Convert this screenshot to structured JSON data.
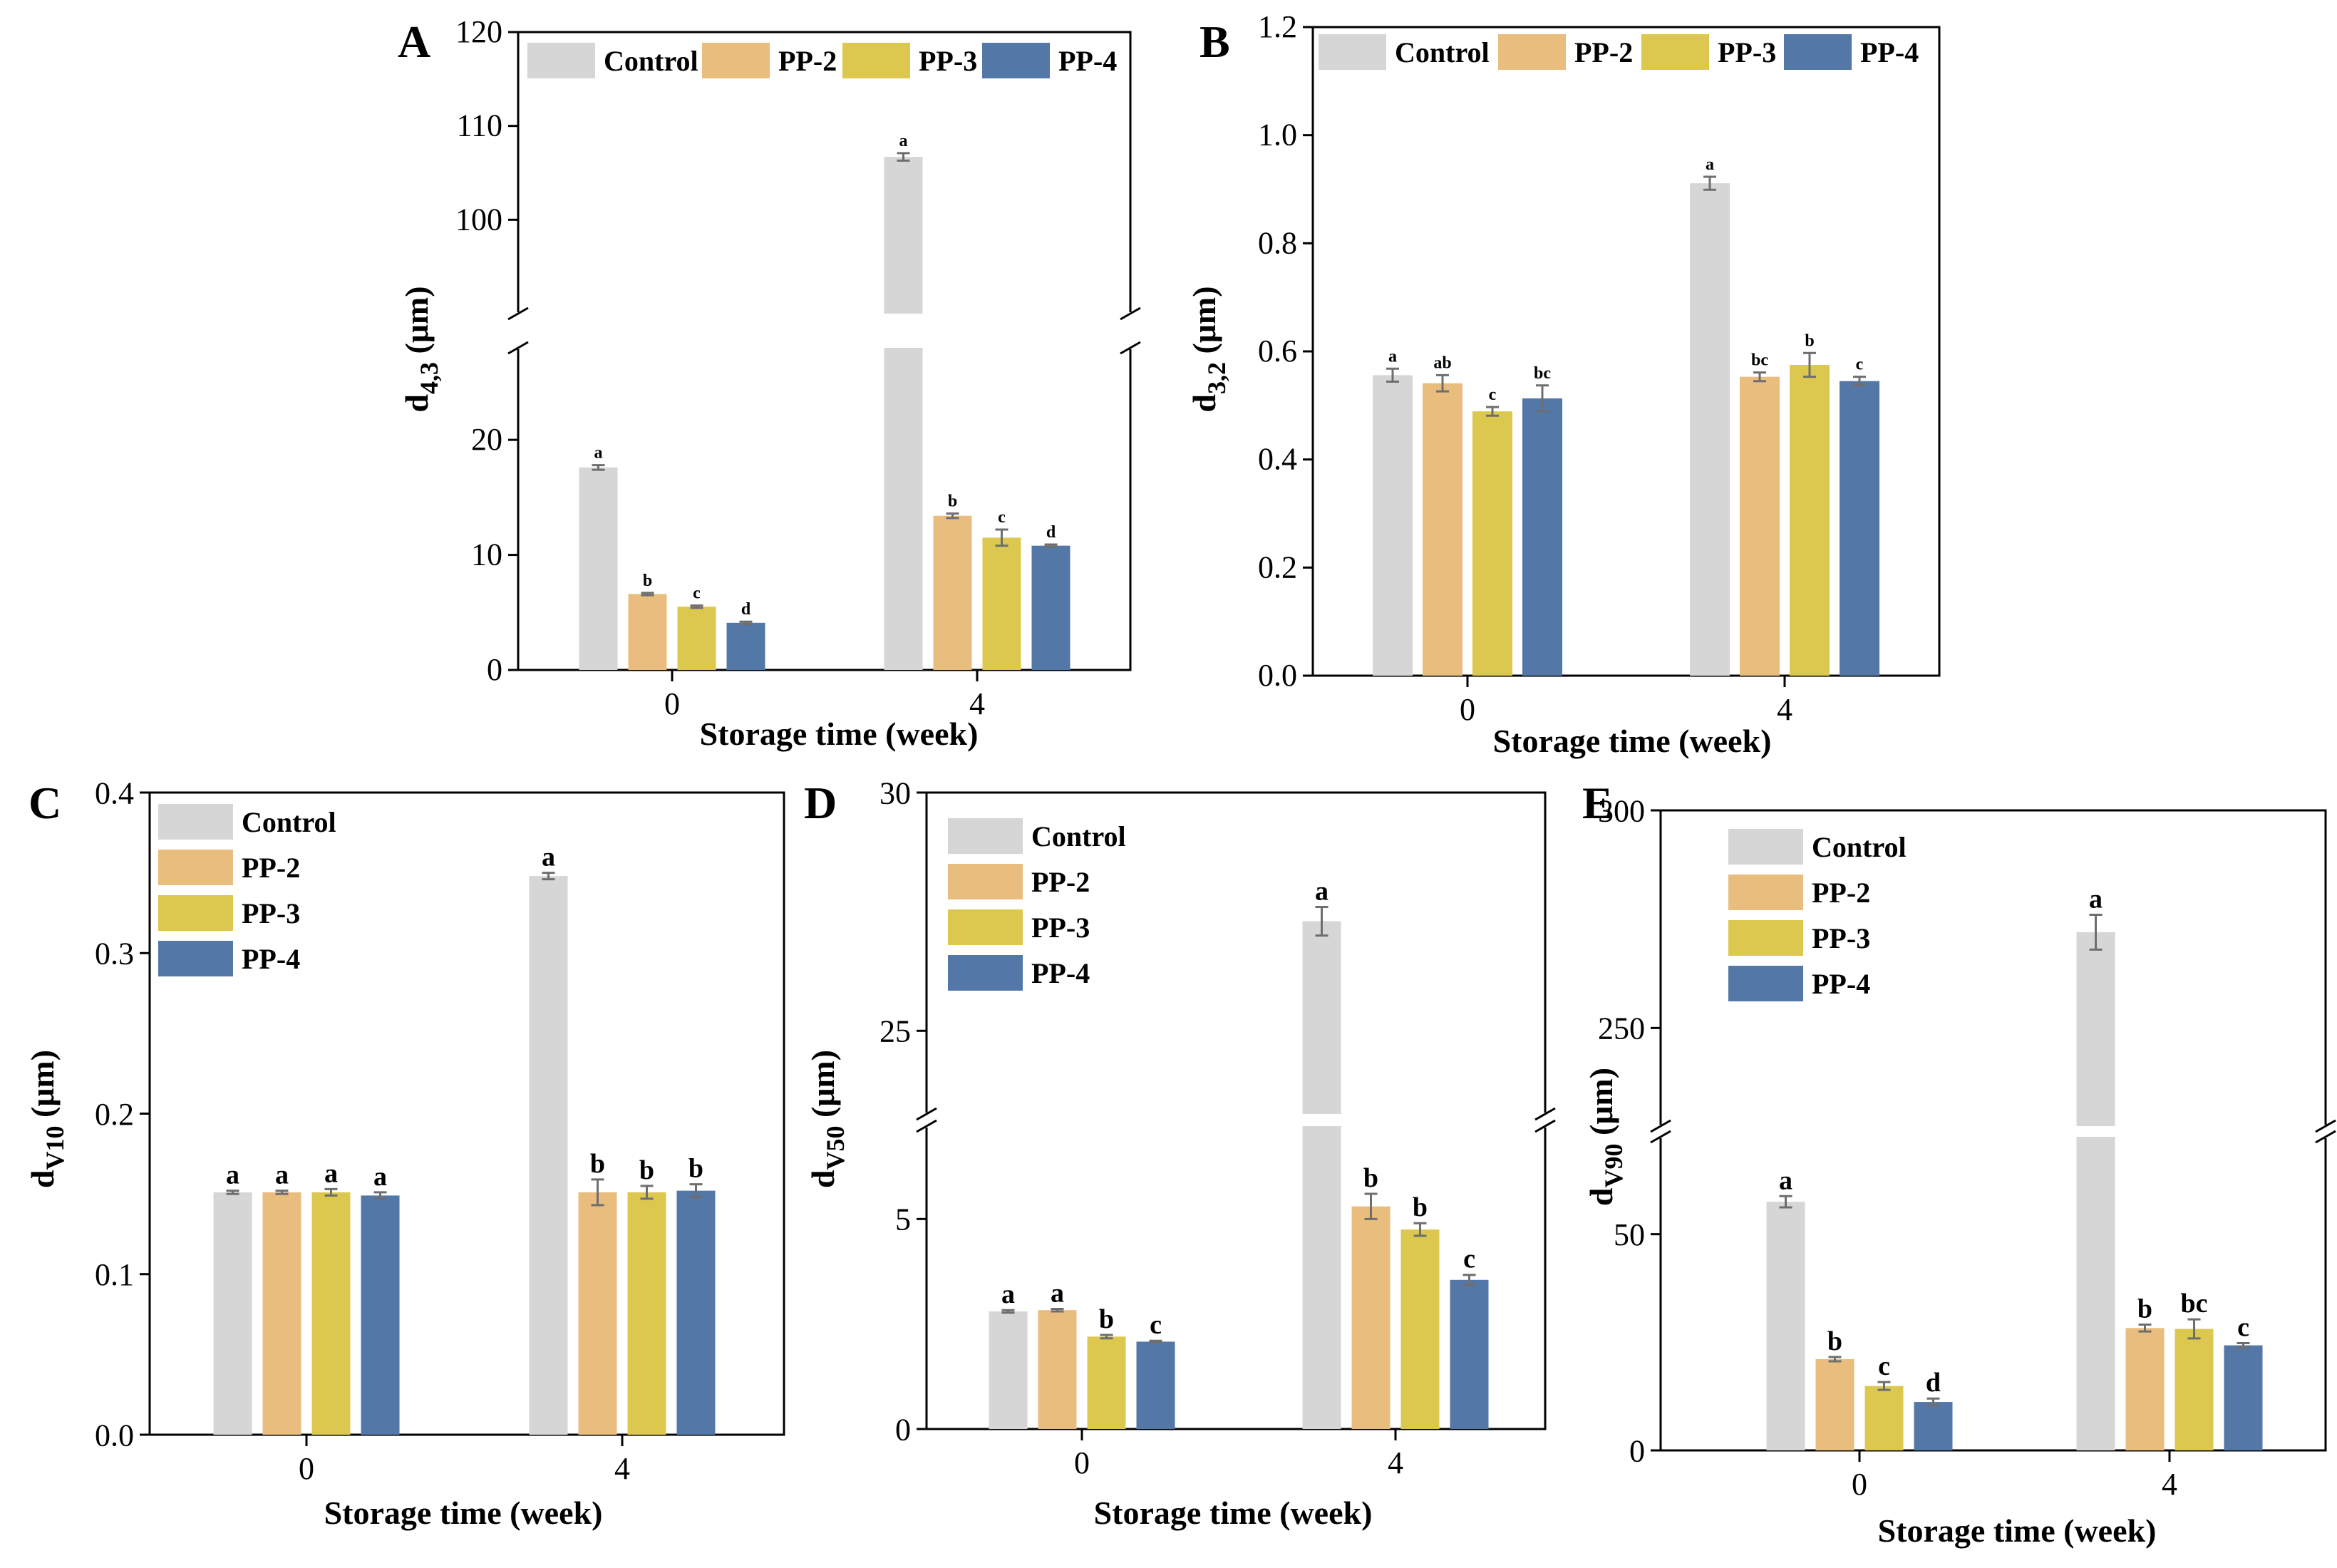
{
  "chart_data": [
    {
      "panel": "A",
      "type": "bar",
      "xlabel": "Storage time (week)",
      "ylabel": "d4,3 (μm)",
      "ylabel_main": "d",
      "ylabel_sub": "4,3",
      "ylabel_unit": " (μm)",
      "categories": [
        "0",
        "4"
      ],
      "axis_break": true,
      "yticks_lower": [
        "0",
        "10",
        "20"
      ],
      "yticks_upper": [
        "100",
        "110",
        "120"
      ],
      "series": [
        {
          "name": "Control",
          "values": [
            17.6,
            106.7
          ],
          "errors": [
            0.2,
            0.4
          ],
          "letters": [
            "a",
            "a"
          ]
        },
        {
          "name": "PP-2",
          "values": [
            6.6,
            13.4
          ],
          "errors": [
            0.1,
            0.2
          ],
          "letters": [
            "b",
            "b"
          ]
        },
        {
          "name": "PP-3",
          "values": [
            5.5,
            11.5
          ],
          "errors": [
            0.1,
            0.7
          ],
          "letters": [
            "c",
            "c"
          ]
        },
        {
          "name": "PP-4",
          "values": [
            4.1,
            10.8
          ],
          "errors": [
            0.1,
            0.1
          ],
          "letters": [
            "d",
            "d"
          ]
        }
      ],
      "legend_position": "top"
    },
    {
      "panel": "B",
      "type": "bar",
      "xlabel": "Storage time (week)",
      "ylabel": "d3,2 (μm)",
      "ylabel_main": "d",
      "ylabel_sub": "3,2",
      "ylabel_unit": " (μm)",
      "categories": [
        "0",
        "4"
      ],
      "ylim": [
        0,
        1.2
      ],
      "yticks": [
        "0.0",
        "0.2",
        "0.4",
        "0.6",
        "0.8",
        "1.0",
        "1.2"
      ],
      "series": [
        {
          "name": "Control",
          "values": [
            0.556,
            0.911
          ],
          "errors": [
            0.012,
            0.012
          ],
          "letters": [
            "a",
            "a"
          ]
        },
        {
          "name": "PP-2",
          "values": [
            0.541,
            0.553
          ],
          "errors": [
            0.015,
            0.008
          ],
          "letters": [
            "ab",
            "bc"
          ]
        },
        {
          "name": "PP-3",
          "values": [
            0.489,
            0.575
          ],
          "errors": [
            0.008,
            0.022
          ],
          "letters": [
            "c",
            "b"
          ]
        },
        {
          "name": "PP-4",
          "values": [
            0.513,
            0.545
          ],
          "errors": [
            0.024,
            0.008
          ],
          "letters": [
            "bc",
            "c"
          ]
        }
      ],
      "legend_position": "top"
    },
    {
      "panel": "C",
      "type": "bar",
      "xlabel": "Storage time (week)",
      "ylabel": "dv10 (μm)",
      "ylabel_main": "d",
      "ylabel_sub": "V10",
      "ylabel_unit": " (μm)",
      "categories": [
        "0",
        "4"
      ],
      "ylim": [
        0,
        0.4
      ],
      "yticks": [
        "0.0",
        "0.1",
        "0.2",
        "0.3",
        "0.4"
      ],
      "series": [
        {
          "name": "Control",
          "values": [
            0.151,
            0.348
          ],
          "errors": [
            0.001,
            0.002
          ],
          "letters": [
            "a",
            "a"
          ]
        },
        {
          "name": "PP-2",
          "values": [
            0.151,
            0.151
          ],
          "errors": [
            0.001,
            0.008
          ],
          "letters": [
            "a",
            "b"
          ]
        },
        {
          "name": "PP-3",
          "values": [
            0.151,
            0.151
          ],
          "errors": [
            0.002,
            0.004
          ],
          "letters": [
            "a",
            "b"
          ]
        },
        {
          "name": "PP-4",
          "values": [
            0.149,
            0.152
          ],
          "errors": [
            0.002,
            0.004
          ],
          "letters": [
            "a",
            "b"
          ]
        }
      ],
      "legend_position": "top-left"
    },
    {
      "panel": "D",
      "type": "bar",
      "xlabel": "Storage time (week)",
      "ylabel": "dv50 (μm)",
      "ylabel_main": "d",
      "ylabel_sub": "V50",
      "ylabel_unit": " (μm)",
      "categories": [
        "0",
        "4"
      ],
      "axis_break": true,
      "yticks_lower": [
        "0",
        "5"
      ],
      "yticks_upper": [
        "25",
        "30"
      ],
      "series": [
        {
          "name": "Control",
          "values": [
            2.8,
            27.3
          ],
          "errors": [
            0.03,
            0.3
          ],
          "letters": [
            "a",
            "a"
          ]
        },
        {
          "name": "PP-2",
          "values": [
            2.83,
            5.3
          ],
          "errors": [
            0.03,
            0.3
          ],
          "letters": [
            "a",
            "b"
          ]
        },
        {
          "name": "PP-3",
          "values": [
            2.2,
            4.75
          ],
          "errors": [
            0.04,
            0.15
          ],
          "letters": [
            "b",
            "b"
          ]
        },
        {
          "name": "PP-4",
          "values": [
            2.08,
            3.55
          ],
          "errors": [
            0.02,
            0.12
          ],
          "letters": [
            "c",
            "c"
          ]
        }
      ],
      "legend_position": "top-left"
    },
    {
      "panel": "E",
      "type": "bar",
      "xlabel": "Storage time (week)",
      "ylabel": "dv90 (μm)",
      "ylabel_main": "d",
      "ylabel_sub": "V90",
      "ylabel_unit": " (μm)",
      "categories": [
        "0",
        "4"
      ],
      "axis_break": true,
      "yticks_lower": [
        "0",
        "50"
      ],
      "yticks_upper": [
        "250",
        "300"
      ],
      "series": [
        {
          "name": "Control",
          "values": [
            57.5,
            272
          ],
          "errors": [
            1.3,
            4
          ],
          "letters": [
            "a",
            "a"
          ]
        },
        {
          "name": "PP-2",
          "values": [
            21.1,
            28.3
          ],
          "errors": [
            0.5,
            0.8
          ],
          "letters": [
            "b",
            "b"
          ]
        },
        {
          "name": "PP-3",
          "values": [
            14.9,
            28.1
          ],
          "errors": [
            0.9,
            2.2
          ],
          "letters": [
            "c",
            "bc"
          ]
        },
        {
          "name": "PP-4",
          "values": [
            11.2,
            24.3
          ],
          "errors": [
            0.8,
            0.5
          ],
          "letters": [
            "d",
            "c"
          ]
        }
      ],
      "legend_position": "top-left"
    }
  ],
  "colors": {
    "Control": "#d6d6d6",
    "PP-2": "#e8bd7e",
    "PP-3": "#dcc84e",
    "PP-4": "#5377a6",
    "error_bar": "#6e6e6e"
  }
}
